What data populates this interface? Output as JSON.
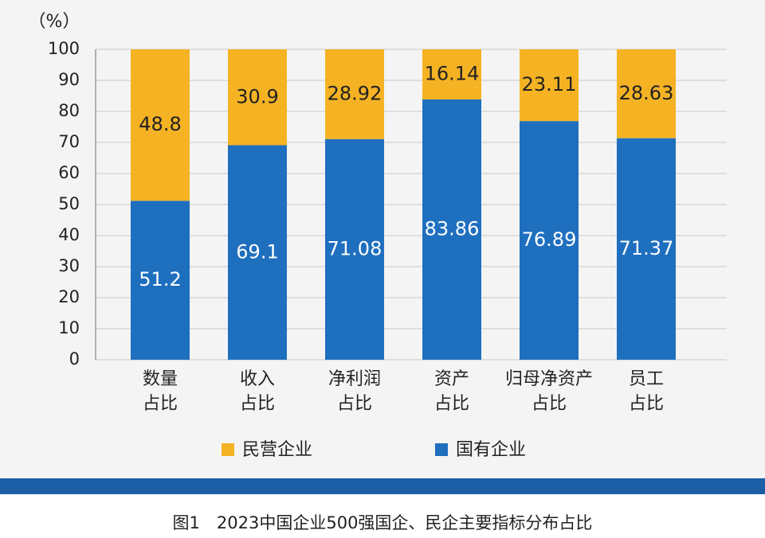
{
  "chart_data": {
    "type": "stacked_bar",
    "y_label": "（%）",
    "categories": [
      "数量\n占比",
      "收入\n占比",
      "净利润\n占比",
      "资产\n占比",
      "归母净资产\n占比",
      "员工\n占比"
    ],
    "series": [
      {
        "name": "国有企业",
        "color": "#1f6fbf",
        "values": [
          51.2,
          69.1,
          71.08,
          83.86,
          76.89,
          71.37
        ]
      },
      {
        "name": "民营企业",
        "color": "#f5b324",
        "values": [
          48.8,
          30.9,
          28.92,
          16.14,
          23.11,
          28.63
        ]
      }
    ],
    "ylim": [
      0,
      100
    ],
    "yticks": [
      0,
      10,
      20,
      30,
      40,
      50,
      60,
      70,
      80,
      90,
      100
    ],
    "grid": true,
    "caption": "图1　2023中国企业500强国企、民企主要指标分布占比"
  }
}
